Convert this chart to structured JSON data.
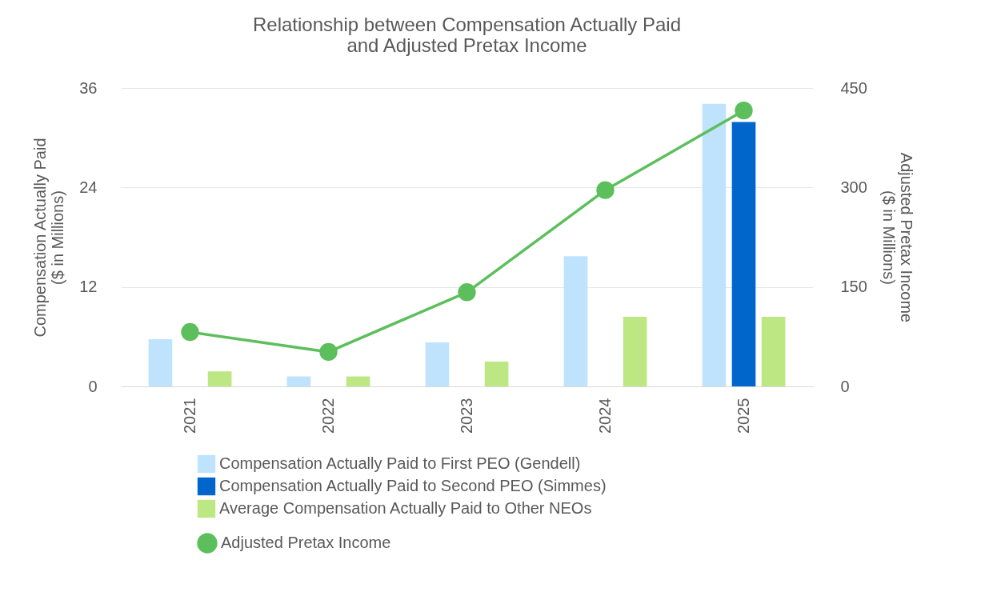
{
  "chart_data": {
    "type": "bar",
    "title": "Relationship between Compensation Actually Paid\nand Adjusted Pretax Income",
    "ylabel": "Compensation Actually Paid\n($ in Millions)",
    "y2label": "Adjusted Pretax Income\n($ in Millions)",
    "categories": [
      "2021",
      "2022",
      "2023",
      "2024",
      "2025"
    ],
    "series": [
      {
        "name": "Compensation Actually Paid to First PEO (Gendell)",
        "color": "#bfe3fc",
        "values": [
          5.7,
          1.2,
          5.3,
          15.7,
          34.1
        ]
      },
      {
        "name": "Compensation Actually Paid to Second PEO (Simmes)",
        "color": "#0066cc",
        "values": [
          null,
          null,
          null,
          null,
          31.9
        ]
      },
      {
        "name": "Average Compensation Actually Paid to Other NEOs",
        "color": "#bde783",
        "values": [
          1.8,
          1.2,
          3.0,
          8.4,
          8.4
        ]
      },
      {
        "name": "Adjusted Pretax Income",
        "color": "#5cbf5c",
        "type": "line",
        "axis": "y2",
        "marker": "circle",
        "values": [
          82,
          52,
          142,
          296,
          416
        ]
      }
    ],
    "ylim": [
      0,
      36
    ],
    "yticks": [
      0,
      12,
      24,
      36
    ],
    "y2lim": [
      0,
      450
    ],
    "y2ticks": [
      0,
      150,
      300,
      450
    ],
    "grid": "y",
    "legend": "bottom"
  }
}
